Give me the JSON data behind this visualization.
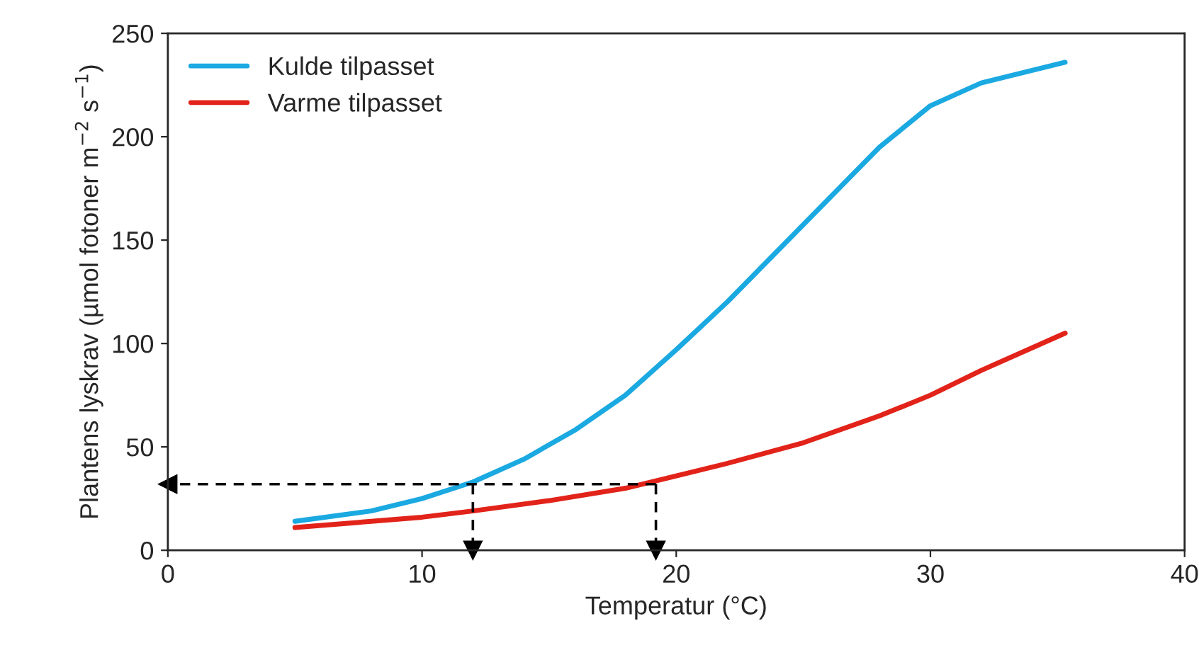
{
  "chart_data": {
    "type": "line",
    "xlabel": "Temperatur (°C)",
    "ylabel": "Plantens lyskrav (µmol fotoner m$^{−2}$ s$^{−1}$)",
    "xlim": [
      0,
      40
    ],
    "xticks": [
      0,
      10,
      20,
      30,
      40
    ],
    "ylim": [
      0,
      250
    ],
    "yticks": [
      0,
      50,
      100,
      150,
      200,
      250
    ],
    "grid": false,
    "legend": "top left",
    "series": [
      {
        "name": "Kulde tilpasset",
        "color": "#1ba9e1",
        "x": [
          5,
          8,
          10,
          12,
          14,
          16,
          18,
          20,
          22,
          24,
          26,
          28,
          30,
          32,
          35.3
        ],
        "values": [
          14,
          19,
          25,
          33,
          44,
          58,
          75,
          97,
          120,
          145,
          170,
          195,
          215,
          226,
          236
        ]
      },
      {
        "name": "Varme tilpasset",
        "color": "#e2231a",
        "x": [
          5,
          8,
          10,
          12,
          15,
          18,
          20,
          22,
          25,
          28,
          30,
          32,
          35.3
        ],
        "values": [
          11,
          14,
          16,
          19,
          24,
          30,
          36,
          42,
          52,
          65,
          75,
          87,
          105
        ]
      },
      {
        "color": "#000000",
        "line_style": "dashed",
        "x": [
          19.2,
          0
        ],
        "values": [
          32,
          32
        ]
      },
      {
        "color": "#000000",
        "line_style": "dashed",
        "x": [
          12,
          12
        ],
        "values": [
          32,
          0
        ]
      },
      {
        "color": "#000000",
        "line_style": "dashed",
        "x": [
          19.2,
          19.2
        ],
        "values": [
          32,
          0
        ]
      }
    ]
  }
}
